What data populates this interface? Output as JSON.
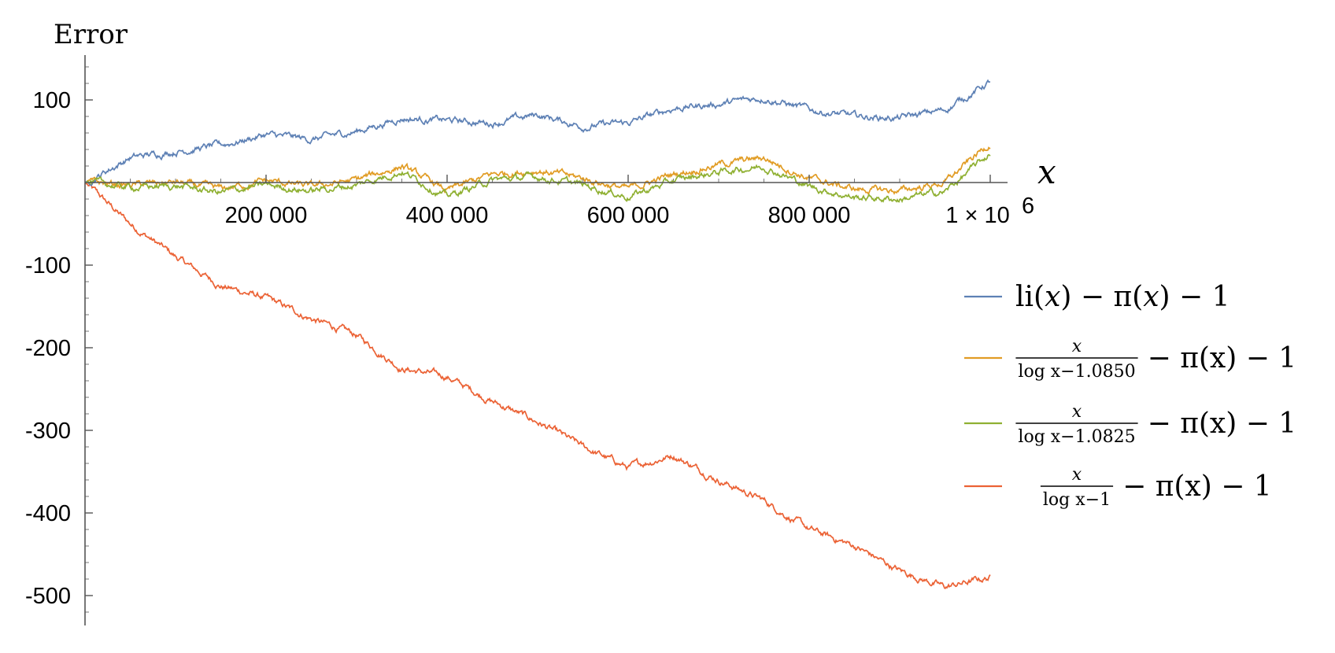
{
  "chart_data": {
    "type": "line",
    "ylabel": "Error",
    "xlabel": "x",
    "xlim": [
      0,
      1000000
    ],
    "ylim": [
      -500,
      100
    ],
    "x_ticks": [
      {
        "value": 200000,
        "label": "200 000"
      },
      {
        "value": 400000,
        "label": "400 000"
      },
      {
        "value": 600000,
        "label": "600 000"
      },
      {
        "value": 800000,
        "label": "800 000"
      },
      {
        "value": 1000000,
        "label": "1 × 10",
        "superscript": "6"
      }
    ],
    "y_ticks": [
      {
        "value": 100,
        "label": "100"
      },
      {
        "value": -100,
        "label": "-100"
      },
      {
        "value": -200,
        "label": "-200"
      },
      {
        "value": -300,
        "label": "-300"
      },
      {
        "value": -400,
        "label": "-400"
      },
      {
        "value": -500,
        "label": "-500"
      }
    ],
    "grid": false,
    "legend_position": "right",
    "x": [
      0,
      50000,
      100000,
      150000,
      200000,
      250000,
      300000,
      350000,
      400000,
      450000,
      500000,
      550000,
      600000,
      650000,
      700000,
      750000,
      800000,
      850000,
      900000,
      950000,
      1000000
    ],
    "series": [
      {
        "name": "li(x) − π(x) − 1",
        "legend": {
          "lead": "li(",
          "var1": "x",
          "mid": ") − π(",
          "var2": "x",
          "tail": ") − 1"
        },
        "color": "#5e81b5",
        "values": [
          0,
          30,
          38,
          45,
          58,
          52,
          62,
          78,
          75,
          72,
          82,
          68,
          72,
          90,
          95,
          103,
          88,
          80,
          78,
          88,
          122
        ]
      },
      {
        "name": "x/(log x − 1.0850) − π(x) − 1",
        "legend": {
          "num": "x",
          "den": "log x−1.0850",
          "tail": "− π(x) − 1"
        },
        "color": "#e19c24",
        "values": [
          0,
          -3,
          0,
          -8,
          2,
          -5,
          3,
          20,
          -10,
          10,
          15,
          5,
          -8,
          10,
          22,
          30,
          5,
          -8,
          -10,
          0,
          48
        ]
      },
      {
        "name": "x/(log x − 1.0825) − π(x) − 1",
        "legend": {
          "num": "x",
          "den": "log x−1.0825",
          "tail": "− π(x) − 1"
        },
        "color": "#8fb032",
        "values": [
          0,
          -6,
          -4,
          -12,
          -3,
          -10,
          -3,
          14,
          -17,
          3,
          7,
          -3,
          -17,
          2,
          13,
          20,
          -5,
          -18,
          -20,
          -11,
          35
        ]
      },
      {
        "name": "x/(log x − 1) − π(x) − 1",
        "legend": {
          "num": "x",
          "den": "log x−1",
          "tail": "− π(x) − 1"
        },
        "color": "#eb6235",
        "values": [
          0,
          -50,
          -90,
          -125,
          -140,
          -165,
          -185,
          -225,
          -235,
          -265,
          -290,
          -320,
          -345,
          -330,
          -360,
          -385,
          -420,
          -440,
          -470,
          -490,
          -478
        ]
      }
    ]
  }
}
